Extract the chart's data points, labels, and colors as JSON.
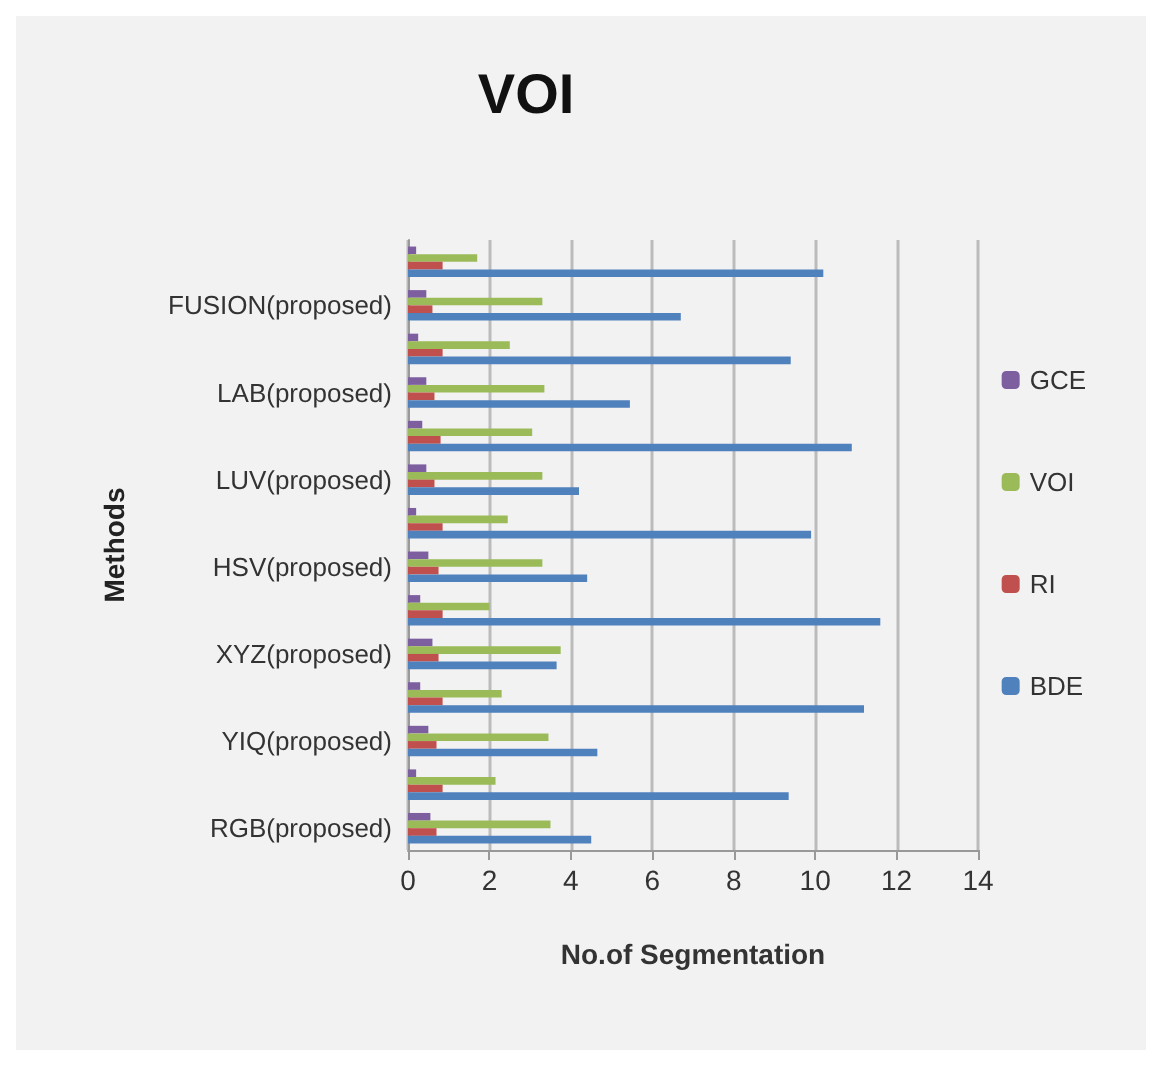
{
  "chart_data": {
    "type": "bar",
    "orientation": "horizontal",
    "title": "VOI",
    "xlabel": "No.of Segmentation",
    "ylabel": "Methods",
    "categories": [
      null,
      "FUSION(proposed)",
      null,
      "LAB(proposed)",
      null,
      "LUV(proposed)",
      null,
      "HSV(proposed)",
      null,
      "XYZ(proposed)",
      null,
      "YIQ(proposed)",
      null,
      "RGB(proposed)"
    ],
    "series": [
      {
        "name": "GCE",
        "color": "#7d5fa0",
        "values": [
          0.2,
          0.45,
          0.25,
          0.45,
          0.35,
          0.45,
          0.2,
          0.5,
          0.3,
          0.6,
          0.3,
          0.5,
          0.2,
          0.55
        ]
      },
      {
        "name": "VOI",
        "color": "#9bbb59",
        "values": [
          1.7,
          3.3,
          2.5,
          3.35,
          3.05,
          3.3,
          2.45,
          3.3,
          2.0,
          3.75,
          2.3,
          3.45,
          2.15,
          3.5
        ]
      },
      {
        "name": "RI",
        "color": "#c0504d",
        "values": [
          0.85,
          0.6,
          0.85,
          0.65,
          0.8,
          0.65,
          0.85,
          0.75,
          0.85,
          0.75,
          0.85,
          0.7,
          0.85,
          0.7
        ]
      },
      {
        "name": "BDE",
        "color": "#4f81bd",
        "values": [
          10.2,
          6.7,
          9.4,
          5.45,
          10.9,
          4.2,
          9.9,
          4.4,
          11.6,
          3.65,
          11.2,
          4.65,
          9.35,
          4.5
        ]
      }
    ],
    "xlim": [
      0,
      14
    ],
    "xticks": [
      0,
      2,
      4,
      6,
      8,
      10,
      12,
      14
    ],
    "grid": "x",
    "legend": "right"
  }
}
